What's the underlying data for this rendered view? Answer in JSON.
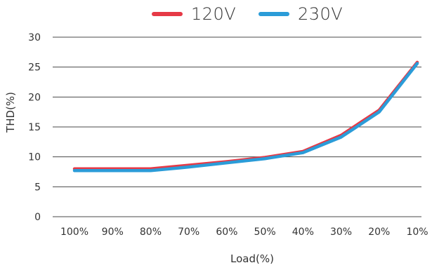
{
  "chart_data": {
    "type": "line",
    "categories": [
      "100%",
      "90%",
      "80%",
      "70%",
      "60%",
      "50%",
      "40%",
      "30%",
      "20%",
      "10%"
    ],
    "series": [
      {
        "name": "120V",
        "color": "#e63946",
        "values": [
          8.0,
          8.0,
          8.0,
          8.6,
          9.2,
          9.9,
          10.9,
          13.6,
          17.8,
          25.8
        ]
      },
      {
        "name": "230V",
        "color": "#2b9cd8",
        "values": [
          7.7,
          7.7,
          7.7,
          8.3,
          9.0,
          9.7,
          10.7,
          13.3,
          17.5,
          25.6
        ]
      }
    ],
    "title": "",
    "xlabel": "Load(%)",
    "ylabel": "THD(%)",
    "ylim": [
      0,
      30
    ],
    "yticks": [
      "0",
      "5",
      "10",
      "15",
      "20",
      "25",
      "30"
    ],
    "grid": true,
    "legend_position": "top-center"
  }
}
